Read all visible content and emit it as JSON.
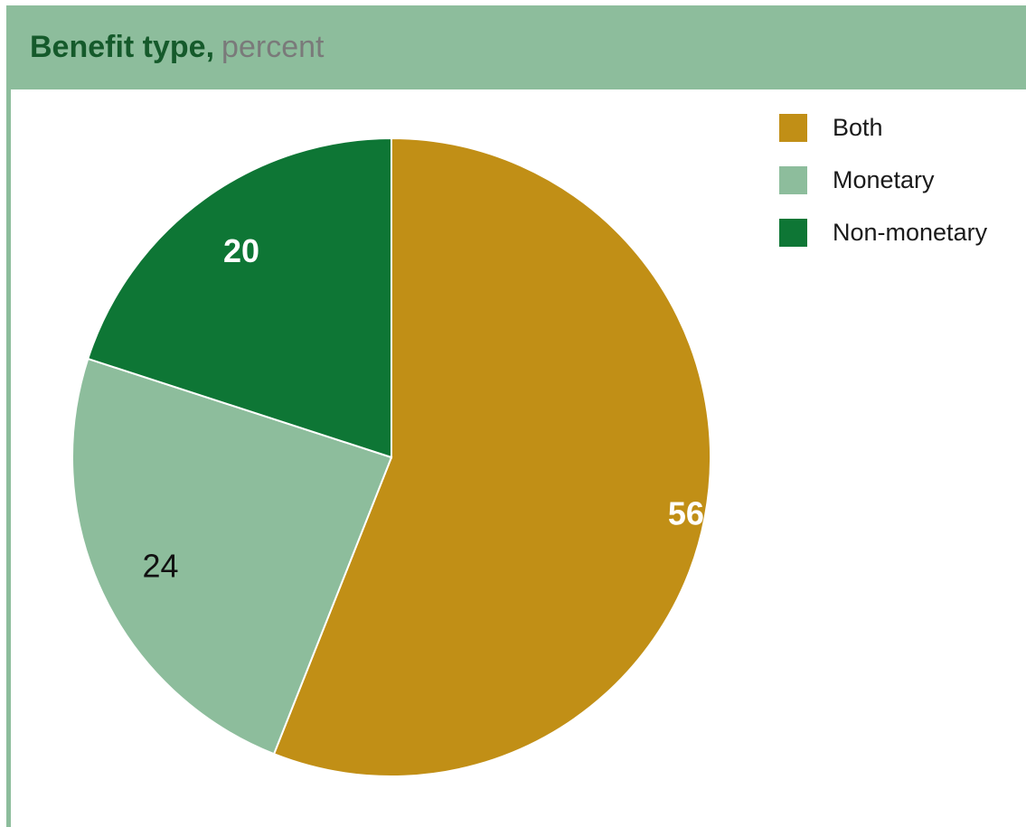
{
  "header": {
    "title": "Benefit type,",
    "unit": "percent"
  },
  "colors": {
    "header_bg": "#8dbd9c",
    "title": "#155a2b",
    "unit": "#7a7a7a"
  },
  "chart_data": {
    "type": "pie",
    "title": "Benefit type, percent",
    "series": [
      {
        "name": "Both",
        "value": 56,
        "color": "#c18f16",
        "label_color": "#ffffff",
        "label_bold": true
      },
      {
        "name": "Monetary",
        "value": 24,
        "color": "#8dbd9c",
        "label_color": "#111111",
        "label_bold": false
      },
      {
        "name": "Non-monetary",
        "value": 20,
        "color": "#0e7635",
        "label_color": "#ffffff",
        "label_bold": true
      }
    ],
    "legend": {
      "position": "top-right",
      "entries": [
        "Both",
        "Monetary",
        "Non-monetary"
      ]
    }
  }
}
